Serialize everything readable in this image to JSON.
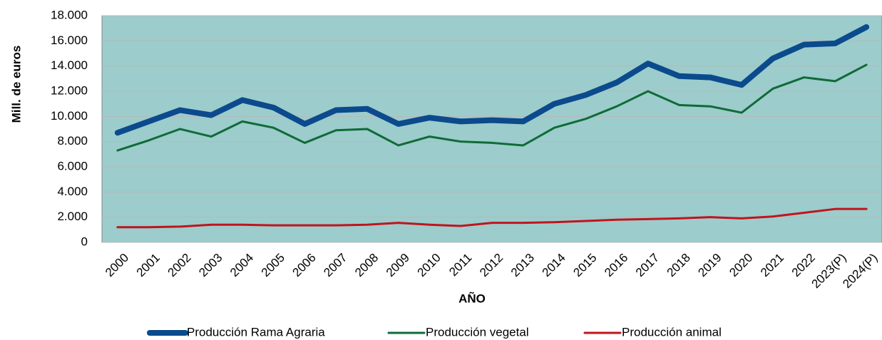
{
  "chart_data": {
    "type": "line",
    "y_label": "Mill. de euros",
    "x_label": "AÑO",
    "categories": [
      "2000",
      "2001",
      "2002",
      "2003",
      "2004",
      "2005",
      "2006",
      "2007",
      "2008",
      "2009",
      "2010",
      "2011",
      "2012",
      "2013",
      "2014",
      "2015",
      "2016",
      "2017",
      "2018",
      "2019",
      "2020",
      "2021",
      "2022",
      "2023(P)",
      "2024(P)"
    ],
    "series": [
      {
        "name": "Producción Rama Agraria",
        "color": "#0b4a8c",
        "width": 8,
        "values": [
          8700,
          9600,
          10500,
          10100,
          11300,
          10700,
          9400,
          10500,
          10600,
          9400,
          9900,
          9600,
          9700,
          9600,
          11000,
          11700,
          12700,
          14200,
          13200,
          13100,
          12500,
          14600,
          15700,
          15800,
          17100
        ]
      },
      {
        "name": "Producción vegetal",
        "color": "#0f6b37",
        "width": 3,
        "values": [
          7300,
          8100,
          9000,
          8400,
          9600,
          9100,
          7900,
          8900,
          9000,
          7700,
          8400,
          8000,
          7900,
          7700,
          9100,
          9800,
          10800,
          12000,
          10900,
          10800,
          10300,
          12200,
          13100,
          12800,
          14100
        ]
      },
      {
        "name": "Producción animal",
        "color": "#c0141e",
        "width": 3,
        "values": [
          1200,
          1200,
          1250,
          1400,
          1400,
          1350,
          1350,
          1350,
          1400,
          1550,
          1400,
          1300,
          1550,
          1550,
          1600,
          1700,
          1800,
          1850,
          1900,
          2000,
          1900,
          2050,
          2350,
          2650,
          2650
        ]
      }
    ],
    "ylim": [
      0,
      18000
    ],
    "yticks": [
      0,
      {
        "value": 2000,
        "label": "2.000"
      },
      {
        "value": 4000,
        "label": "4.000"
      },
      {
        "value": 6000,
        "label": "6.000"
      },
      {
        "value": 8000,
        "label": "8.000"
      },
      {
        "value": 10000,
        "label": "10.000"
      },
      {
        "value": 12000,
        "label": "12.000"
      },
      {
        "value": 14000,
        "label": "14.000"
      },
      {
        "value": 16000,
        "label": "16.000"
      },
      {
        "value": 18000,
        "label": "18.000"
      }
    ],
    "grid": true,
    "plot_background": "#9ccccc",
    "legend": "bottom"
  }
}
